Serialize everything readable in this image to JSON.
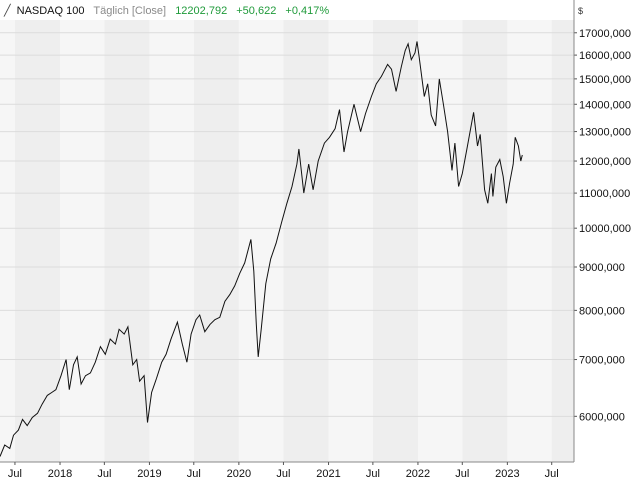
{
  "header": {
    "name": "NASDAQ 100",
    "interval": "Täglich [Close]",
    "last": "12202,792",
    "change": "+50,622",
    "change_pct": "+0,417%"
  },
  "currency": "$",
  "colors": {
    "line": "#111111",
    "positive": "#1f9a3a",
    "band_light": "#f6f6f6",
    "band_dark": "#eeeeee",
    "grid": "#dcdcdc"
  },
  "chart_data": {
    "type": "line",
    "scale": "log",
    "grid": true,
    "legend": "none",
    "ylim": [
      5300,
      17600
    ],
    "xlim": [
      "2017-05-01",
      "2023-09-30"
    ],
    "y_ticks": [
      {
        "value": 6000,
        "label": "6000,000"
      },
      {
        "value": 7000,
        "label": "7000,000"
      },
      {
        "value": 8000,
        "label": "8000,000"
      },
      {
        "value": 9000,
        "label": "9000,000"
      },
      {
        "value": 10000,
        "label": "10000,000"
      },
      {
        "value": 11000,
        "label": "11000,000"
      },
      {
        "value": 12000,
        "label": "12000,000"
      },
      {
        "value": 13000,
        "label": "13000,000"
      },
      {
        "value": 14000,
        "label": "14000,000"
      },
      {
        "value": 15000,
        "label": "15000,000"
      },
      {
        "value": 16000,
        "label": "16000,000"
      },
      {
        "value": 17000,
        "label": "17000,000"
      }
    ],
    "x_ticks": [
      {
        "date": "2017-07-01",
        "label": "Jul"
      },
      {
        "date": "2018-01-01",
        "label": "2018"
      },
      {
        "date": "2018-07-01",
        "label": "Jul"
      },
      {
        "date": "2019-01-01",
        "label": "2019"
      },
      {
        "date": "2019-07-01",
        "label": "Jul"
      },
      {
        "date": "2020-01-01",
        "label": "2020"
      },
      {
        "date": "2020-07-01",
        "label": "Jul"
      },
      {
        "date": "2021-01-01",
        "label": "2021"
      },
      {
        "date": "2021-07-01",
        "label": "Jul"
      },
      {
        "date": "2022-01-01",
        "label": "2022"
      },
      {
        "date": "2022-07-01",
        "label": "Jul"
      },
      {
        "date": "2023-01-01",
        "label": "2023"
      },
      {
        "date": "2023-07-01",
        "label": "Jul"
      }
    ],
    "series": [
      {
        "name": "",
        "points": [
          [
            "2017-05-01",
            5380
          ],
          [
            "2017-05-20",
            5550
          ],
          [
            "2017-06-10",
            5500
          ],
          [
            "2017-06-25",
            5700
          ],
          [
            "2017-07-15",
            5780
          ],
          [
            "2017-08-01",
            5950
          ],
          [
            "2017-08-20",
            5850
          ],
          [
            "2017-09-10",
            5980
          ],
          [
            "2017-10-01",
            6050
          ],
          [
            "2017-10-20",
            6200
          ],
          [
            "2017-11-10",
            6350
          ],
          [
            "2017-11-28",
            6400
          ],
          [
            "2017-12-15",
            6450
          ],
          [
            "2018-01-05",
            6700
          ],
          [
            "2018-01-26",
            7000
          ],
          [
            "2018-02-08",
            6450
          ],
          [
            "2018-02-25",
            6900
          ],
          [
            "2018-03-12",
            7050
          ],
          [
            "2018-03-28",
            6550
          ],
          [
            "2018-04-15",
            6700
          ],
          [
            "2018-05-05",
            6750
          ],
          [
            "2018-05-25",
            6950
          ],
          [
            "2018-06-15",
            7250
          ],
          [
            "2018-07-05",
            7100
          ],
          [
            "2018-07-25",
            7400
          ],
          [
            "2018-08-15",
            7300
          ],
          [
            "2018-08-30",
            7600
          ],
          [
            "2018-09-20",
            7500
          ],
          [
            "2018-10-05",
            7650
          ],
          [
            "2018-10-25",
            6900
          ],
          [
            "2018-11-10",
            7000
          ],
          [
            "2018-11-22",
            6600
          ],
          [
            "2018-12-10",
            6700
          ],
          [
            "2018-12-24",
            5900
          ],
          [
            "2019-01-10",
            6400
          ],
          [
            "2019-01-30",
            6650
          ],
          [
            "2019-02-20",
            6950
          ],
          [
            "2019-03-10",
            7100
          ],
          [
            "2019-03-30",
            7400
          ],
          [
            "2019-04-25",
            7750
          ],
          [
            "2019-05-15",
            7300
          ],
          [
            "2019-06-03",
            6950
          ],
          [
            "2019-06-20",
            7500
          ],
          [
            "2019-07-10",
            7800
          ],
          [
            "2019-07-25",
            7900
          ],
          [
            "2019-08-15",
            7550
          ],
          [
            "2019-09-05",
            7700
          ],
          [
            "2019-09-25",
            7800
          ],
          [
            "2019-10-15",
            7850
          ],
          [
            "2019-11-05",
            8200
          ],
          [
            "2019-11-25",
            8350
          ],
          [
            "2019-12-15",
            8550
          ],
          [
            "2020-01-05",
            8850
          ],
          [
            "2020-01-25",
            9100
          ],
          [
            "2020-02-19",
            9700
          ],
          [
            "2020-03-02",
            8900
          ],
          [
            "2020-03-12",
            7700
          ],
          [
            "2020-03-20",
            7050
          ],
          [
            "2020-04-01",
            7600
          ],
          [
            "2020-04-20",
            8600
          ],
          [
            "2020-05-10",
            9200
          ],
          [
            "2020-06-01",
            9600
          ],
          [
            "2020-06-25",
            10200
          ],
          [
            "2020-07-15",
            10700
          ],
          [
            "2020-08-05",
            11200
          ],
          [
            "2020-08-25",
            11900
          ],
          [
            "2020-09-02",
            12400
          ],
          [
            "2020-09-22",
            11000
          ],
          [
            "2020-10-12",
            11900
          ],
          [
            "2020-10-30",
            11100
          ],
          [
            "2020-11-20",
            12000
          ],
          [
            "2020-12-15",
            12600
          ],
          [
            "2021-01-05",
            12800
          ],
          [
            "2021-01-28",
            13100
          ],
          [
            "2021-02-15",
            13800
          ],
          [
            "2021-03-05",
            12300
          ],
          [
            "2021-03-20",
            13000
          ],
          [
            "2021-04-15",
            14000
          ],
          [
            "2021-05-12",
            13000
          ],
          [
            "2021-06-01",
            13650
          ],
          [
            "2021-06-25",
            14300
          ],
          [
            "2021-07-15",
            14800
          ],
          [
            "2021-08-05",
            15100
          ],
          [
            "2021-08-30",
            15600
          ],
          [
            "2021-09-15",
            15400
          ],
          [
            "2021-10-04",
            14500
          ],
          [
            "2021-10-25",
            15500
          ],
          [
            "2021-11-10",
            16200
          ],
          [
            "2021-11-22",
            16500
          ],
          [
            "2021-12-05",
            15800
          ],
          [
            "2021-12-20",
            16100
          ],
          [
            "2021-12-28",
            16600
          ],
          [
            "2022-01-05",
            16000
          ],
          [
            "2022-01-27",
            14300
          ],
          [
            "2022-02-10",
            14800
          ],
          [
            "2022-02-24",
            13600
          ],
          [
            "2022-03-14",
            13200
          ],
          [
            "2022-03-29",
            15000
          ],
          [
            "2022-04-15",
            14000
          ],
          [
            "2022-05-02",
            13000
          ],
          [
            "2022-05-20",
            11700
          ],
          [
            "2022-06-01",
            12600
          ],
          [
            "2022-06-16",
            11200
          ],
          [
            "2022-07-01",
            11600
          ],
          [
            "2022-07-20",
            12400
          ],
          [
            "2022-08-16",
            13700
          ],
          [
            "2022-09-01",
            12500
          ],
          [
            "2022-09-12",
            12900
          ],
          [
            "2022-09-30",
            11100
          ],
          [
            "2022-10-13",
            10700
          ],
          [
            "2022-10-28",
            11600
          ],
          [
            "2022-11-03",
            10900
          ],
          [
            "2022-11-15",
            11800
          ],
          [
            "2022-12-01",
            12050
          ],
          [
            "2022-12-15",
            11500
          ],
          [
            "2022-12-28",
            10700
          ],
          [
            "2023-01-10",
            11300
          ],
          [
            "2023-01-25",
            11900
          ],
          [
            "2023-02-02",
            12800
          ],
          [
            "2023-02-15",
            12500
          ],
          [
            "2023-02-25",
            12000
          ],
          [
            "2023-03-03",
            12200
          ]
        ]
      }
    ]
  }
}
